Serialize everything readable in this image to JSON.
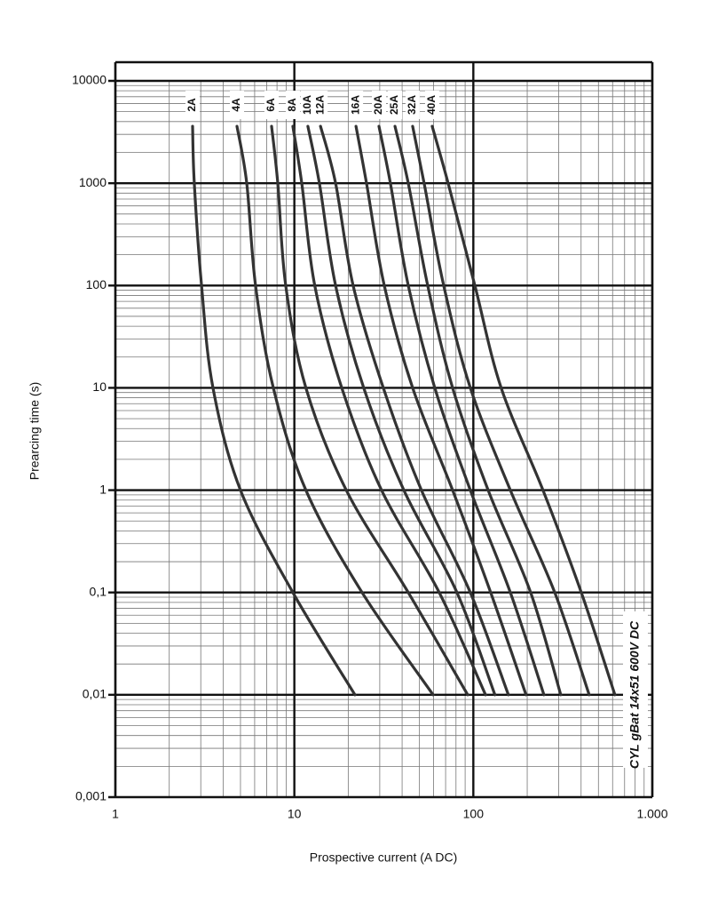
{
  "chart_data": {
    "type": "line",
    "xlabel": "Prospective current (A DC)",
    "ylabel": "Prearcing time (s)",
    "annotation": "CYL gBat 14x51 600V DC",
    "xlog": true,
    "ylog": true,
    "grid": true,
    "minor_grid": true,
    "xlim": [
      1,
      1000
    ],
    "ylim": [
      0.001,
      10000
    ],
    "xticks": [
      1,
      10,
      100,
      {
        "value": 1000,
        "label": "1.000"
      }
    ],
    "yticks": [
      {
        "value": 0.001,
        "label": "0,001"
      },
      {
        "value": 0.01,
        "label": "0,01"
      },
      {
        "value": 0.1,
        "label": "0,1"
      },
      1,
      10,
      100,
      1000,
      10000
    ],
    "series": [
      {
        "name": "2A",
        "color": "#333333",
        "x": [
          2.7,
          2.76,
          3.03,
          3.51,
          5.0,
          9.81,
          21.8
        ],
        "values": [
          3600,
          1000,
          100,
          10,
          1,
          0.1,
          0.01
        ]
      },
      {
        "name": "4A",
        "color": "#333333",
        "x": [
          4.78,
          5.42,
          6.07,
          7.63,
          11.6,
          23.9,
          59.6
        ],
        "values": [
          3600,
          1000,
          100,
          10,
          1,
          0.1,
          0.01
        ]
      },
      {
        "name": "6A",
        "color": "#333333",
        "x": [
          7.46,
          8.08,
          8.95,
          11.6,
          19.5,
          43.3,
          93.0
        ],
        "values": [
          3600,
          1000,
          100,
          10,
          1,
          0.1,
          0.01
        ]
      },
      {
        "name": "8A",
        "color": "#333333",
        "x": [
          9.81,
          11.0,
          13.0,
          18.4,
          30.7,
          64.5,
          117
        ],
        "values": [
          3600,
          1000,
          100,
          10,
          1,
          0.1,
          0.01
        ]
      },
      {
        "name": "10A",
        "color": "#333333",
        "x": [
          11.9,
          13.8,
          17.0,
          24.4,
          40.9,
          81.0,
          132
        ],
        "values": [
          3600,
          1000,
          100,
          10,
          1,
          0.1,
          0.01
        ]
      },
      {
        "name": "12A",
        "color": "#333333",
        "x": [
          14.0,
          17.0,
          21.3,
          31.4,
          51.3,
          96.2,
          157
        ],
        "values": [
          3600,
          1000,
          100,
          10,
          1,
          0.1,
          0.01
        ]
      },
      {
        "name": "16A",
        "color": "#333333",
        "x": [
          22.1,
          25.3,
          31.8,
          45.8,
          76.6,
          125,
          197
        ],
        "values": [
          3600,
          1000,
          100,
          10,
          1,
          0.1,
          0.01
        ]
      },
      {
        "name": "20A",
        "color": "#333333",
        "x": [
          29.7,
          34.4,
          43.3,
          60.9,
          96.2,
          161,
          248
        ],
        "values": [
          3600,
          1000,
          100,
          10,
          1,
          0.1,
          0.01
        ]
      },
      {
        "name": "25A",
        "color": "#333333",
        "x": [
          36.5,
          43.3,
          55.6,
          76.6,
          121,
          209,
          308
        ],
        "values": [
          3600,
          1000,
          100,
          10,
          1,
          0.1,
          0.01
        ]
      },
      {
        "name": "32A",
        "color": "#333333",
        "x": [
          45.8,
          53.1,
          68.3,
          96.2,
          161,
          285,
          444
        ],
        "values": [
          3600,
          1000,
          100,
          10,
          1,
          0.1,
          0.01
        ]
      },
      {
        "name": "40A",
        "color": "#333333",
        "x": [
          58.9,
          72.3,
          102,
          143,
          245,
          401,
          618
        ],
        "values": [
          3600,
          1000,
          100,
          10,
          1,
          0.1,
          0.01
        ]
      }
    ]
  }
}
